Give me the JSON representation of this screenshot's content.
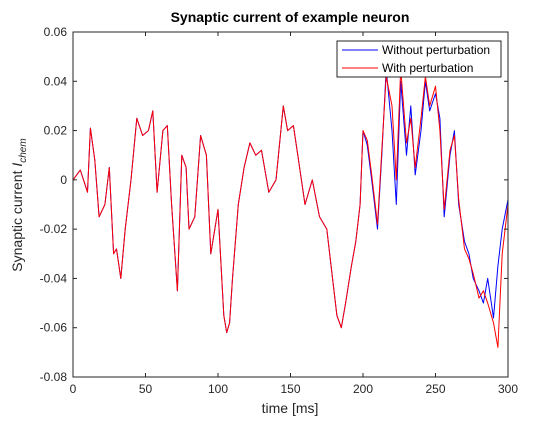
{
  "chart_data": {
    "type": "line",
    "title": "Synaptic current of example neuron",
    "xlabel": "time [ms]",
    "ylabel_main": "Synaptic current ",
    "ylabel_symbol": "I",
    "ylabel_subscript": "chem",
    "xlim": [
      0,
      300
    ],
    "ylim": [
      -0.08,
      0.06
    ],
    "xticks": [
      0,
      50,
      100,
      150,
      200,
      250,
      300
    ],
    "yticks": [
      -0.08,
      -0.06,
      -0.04,
      -0.02,
      0,
      0.02,
      0.04,
      0.06
    ],
    "xtick_labels": [
      "0",
      "50",
      "100",
      "150",
      "200",
      "250",
      "300"
    ],
    "ytick_labels": [
      "-0.08",
      "-0.06",
      "-0.04",
      "-0.02",
      "0",
      "0.02",
      "0.04",
      "0.06"
    ],
    "grid": false,
    "legend_position": "top-right",
    "series": [
      {
        "name": "Without perturbation",
        "color": "#0000ff",
        "x": [
          0,
          5,
          10,
          12,
          15,
          18,
          22,
          25,
          28,
          30,
          33,
          36,
          40,
          44,
          48,
          52,
          55,
          58,
          62,
          65,
          68,
          72,
          75,
          78,
          80,
          84,
          88,
          92,
          95,
          100,
          104,
          106,
          108,
          110,
          114,
          118,
          122,
          126,
          130,
          135,
          140,
          145,
          148,
          152,
          155,
          160,
          165,
          170,
          175,
          178,
          182,
          185,
          188,
          192,
          195,
          198,
          200,
          203,
          206,
          210,
          213,
          216,
          220,
          223,
          226,
          230,
          233,
          236,
          240,
          243,
          246,
          250,
          253,
          256,
          260,
          263,
          266,
          270,
          273,
          276,
          280,
          283,
          286,
          290,
          293,
          296,
          300
        ],
        "y": [
          0.0,
          0.004,
          -0.005,
          0.021,
          0.008,
          -0.015,
          -0.01,
          0.005,
          -0.03,
          -0.028,
          -0.04,
          -0.02,
          0.0,
          0.025,
          0.018,
          0.02,
          0.028,
          -0.005,
          0.02,
          0.022,
          -0.01,
          -0.045,
          0.01,
          0.005,
          -0.02,
          -0.015,
          0.018,
          0.01,
          -0.03,
          -0.012,
          -0.055,
          -0.062,
          -0.058,
          -0.04,
          -0.01,
          0.005,
          0.015,
          0.01,
          0.012,
          -0.005,
          0.0,
          0.03,
          0.02,
          0.022,
          0.01,
          -0.01,
          0.0,
          -0.015,
          -0.02,
          -0.035,
          -0.055,
          -0.06,
          -0.05,
          -0.035,
          -0.025,
          -0.01,
          0.02,
          0.014,
          0.0,
          -0.02,
          0.01,
          0.045,
          0.02,
          -0.01,
          0.04,
          0.01,
          0.03,
          0.002,
          0.02,
          0.04,
          0.028,
          0.035,
          0.025,
          -0.015,
          0.01,
          0.02,
          -0.01,
          -0.025,
          -0.03,
          -0.04,
          -0.045,
          -0.05,
          -0.04,
          -0.056,
          -0.035,
          -0.02,
          -0.008
        ]
      },
      {
        "name": "With perturbation",
        "color": "#ff0000",
        "x": [
          0,
          5,
          10,
          12,
          15,
          18,
          22,
          25,
          28,
          30,
          33,
          36,
          40,
          44,
          48,
          52,
          55,
          58,
          62,
          65,
          68,
          72,
          75,
          78,
          80,
          84,
          88,
          92,
          95,
          100,
          104,
          106,
          108,
          110,
          114,
          118,
          122,
          126,
          130,
          135,
          140,
          145,
          148,
          152,
          155,
          160,
          165,
          170,
          175,
          178,
          182,
          185,
          188,
          192,
          195,
          198,
          200,
          203,
          206,
          210,
          213,
          216,
          220,
          223,
          226,
          230,
          233,
          236,
          240,
          243,
          246,
          250,
          253,
          256,
          260,
          263,
          266,
          270,
          273,
          276,
          280,
          283,
          286,
          290,
          293,
          296,
          300
        ],
        "y": [
          0.0,
          0.004,
          -0.005,
          0.021,
          0.008,
          -0.015,
          -0.01,
          0.005,
          -0.03,
          -0.028,
          -0.04,
          -0.02,
          0.0,
          0.025,
          0.018,
          0.02,
          0.028,
          -0.005,
          0.02,
          0.022,
          -0.01,
          -0.045,
          0.01,
          0.005,
          -0.02,
          -0.015,
          0.018,
          0.01,
          -0.03,
          -0.012,
          -0.055,
          -0.062,
          -0.058,
          -0.04,
          -0.01,
          0.005,
          0.015,
          0.01,
          0.012,
          -0.005,
          0.0,
          0.03,
          0.02,
          0.022,
          0.01,
          -0.01,
          0.0,
          -0.015,
          -0.02,
          -0.035,
          -0.055,
          -0.06,
          -0.05,
          -0.035,
          -0.025,
          -0.01,
          0.02,
          0.016,
          0.002,
          -0.018,
          0.012,
          0.042,
          0.03,
          0.0,
          0.045,
          0.015,
          0.025,
          0.005,
          0.025,
          0.042,
          0.03,
          0.038,
          0.02,
          -0.012,
          0.012,
          0.018,
          -0.008,
          -0.028,
          -0.032,
          -0.038,
          -0.048,
          -0.045,
          -0.05,
          -0.058,
          -0.068,
          -0.03,
          -0.01
        ]
      }
    ]
  }
}
